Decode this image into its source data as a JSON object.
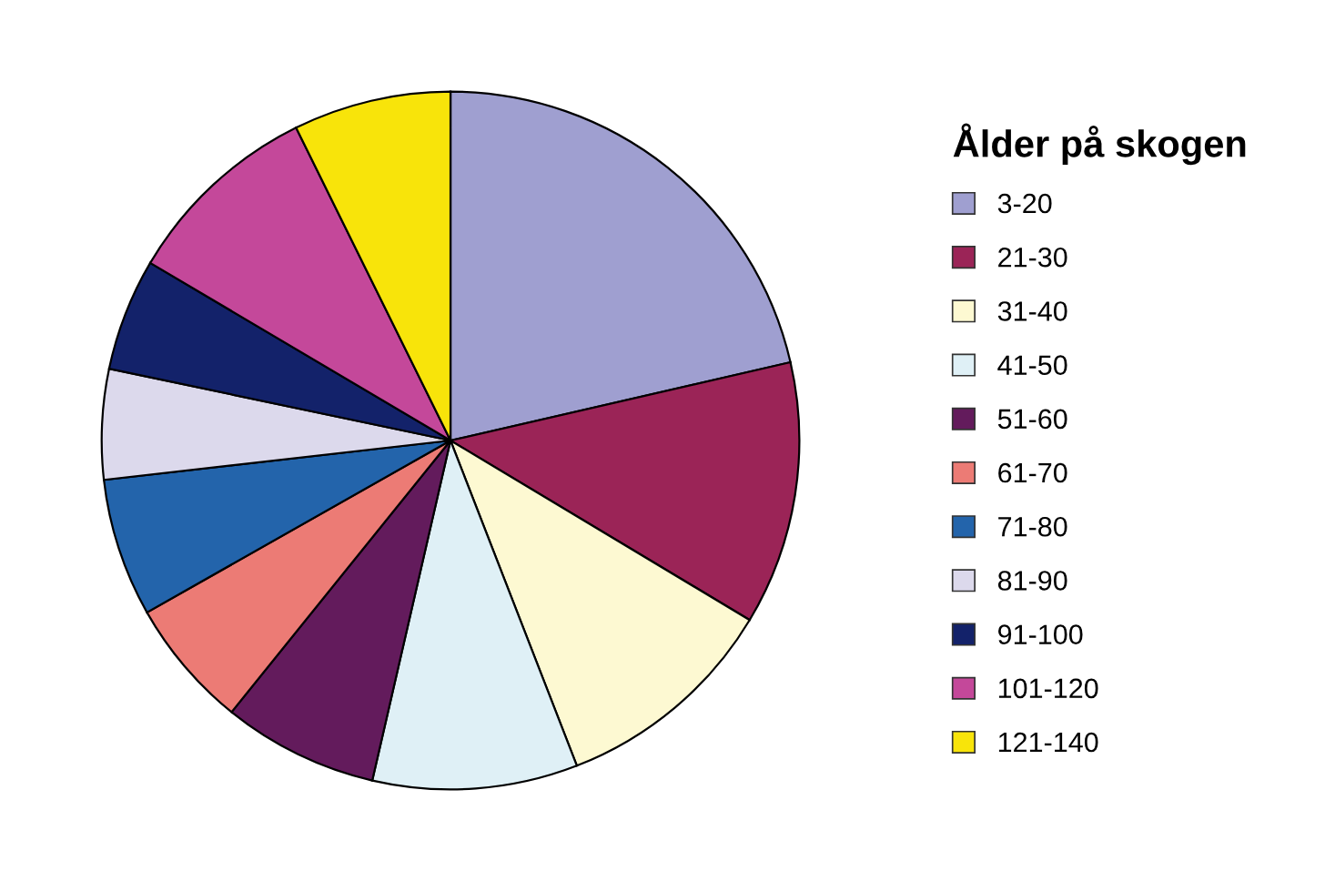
{
  "chart_data": {
    "type": "pie",
    "legend_title": "Ålder på skogen",
    "legend": "right",
    "categories": [
      "3-20",
      "21-30",
      "31-40",
      "41-50",
      "51-60",
      "61-70",
      "71-80",
      "81-90",
      "91-100",
      "101-120",
      "121-140"
    ],
    "values": [
      21.4,
      12.2,
      10.5,
      9.5,
      7.2,
      6.0,
      6.4,
      5.1,
      5.2,
      9.2,
      7.3
    ],
    "colors": [
      "#9f9fd0",
      "#9b2457",
      "#fdf9d2",
      "#dff0f6",
      "#631b5c",
      "#ec7b75",
      "#2364ab",
      "#dcd9ec",
      "#13226a",
      "#c4489a",
      "#f8e40a"
    ]
  }
}
